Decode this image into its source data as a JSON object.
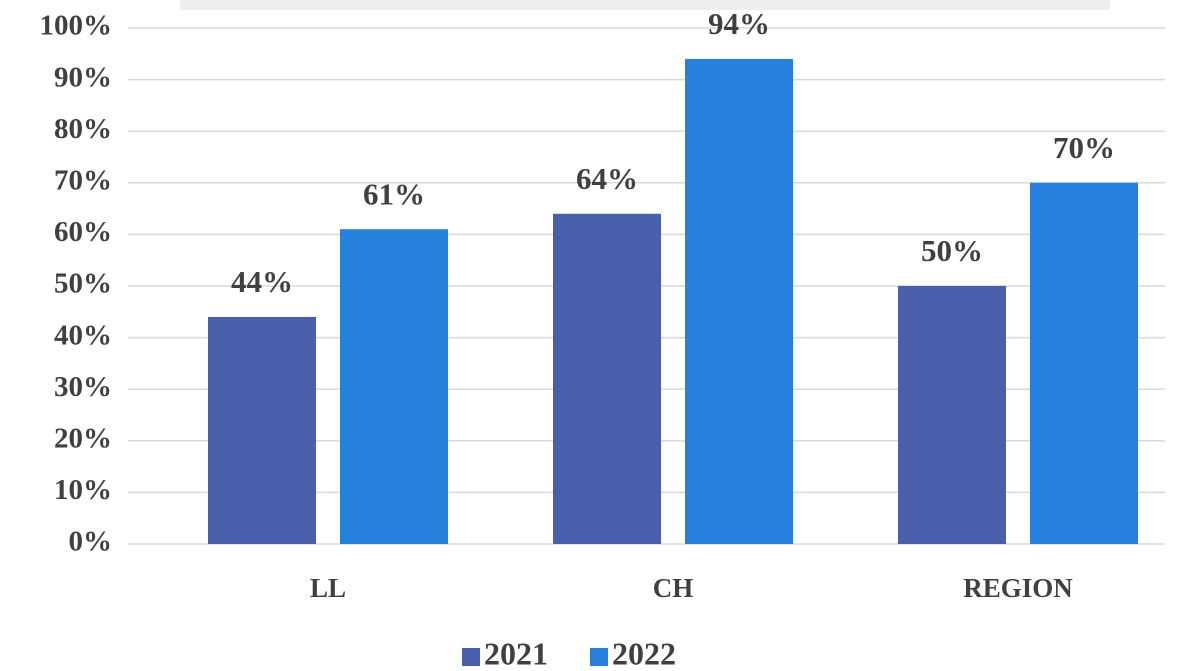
{
  "chart_data": {
    "type": "bar",
    "categories": [
      "LL",
      "CH",
      "REGION"
    ],
    "series": [
      {
        "name": "2021",
        "color": "#4a5fac",
        "values": [
          44,
          64,
          50
        ],
        "value_labels": [
          "44%",
          "64%",
          "50%"
        ]
      },
      {
        "name": "2022",
        "color": "#2680dc",
        "values": [
          61,
          94,
          70
        ],
        "value_labels": [
          "61%",
          "94%",
          "70%"
        ]
      }
    ],
    "ylim": [
      0,
      100
    ],
    "yticks": [
      {
        "value": 0,
        "label": "0%"
      },
      {
        "value": 10,
        "label": "10%"
      },
      {
        "value": 20,
        "label": "20%"
      },
      {
        "value": 30,
        "label": "30%"
      },
      {
        "value": 40,
        "label": "40%"
      },
      {
        "value": 50,
        "label": "50%"
      },
      {
        "value": 60,
        "label": "60%"
      },
      {
        "value": 70,
        "label": "70%"
      },
      {
        "value": 80,
        "label": "80%"
      },
      {
        "value": 90,
        "label": "90%"
      },
      {
        "value": 100,
        "label": "100%"
      }
    ],
    "grid": true,
    "legend": "bottom"
  }
}
